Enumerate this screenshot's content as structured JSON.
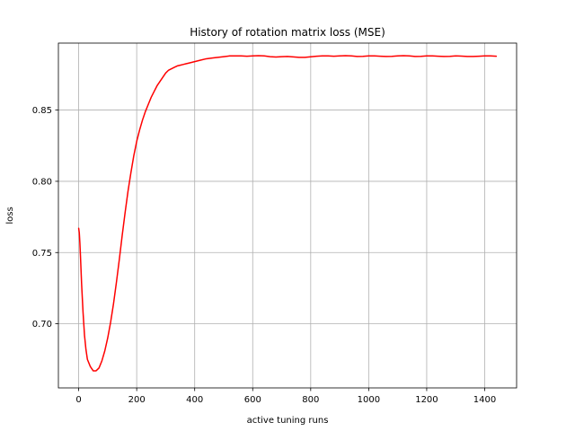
{
  "chart_data": {
    "type": "line",
    "title": "History of rotation matrix loss (MSE)",
    "xlabel": "active tuning runs",
    "ylabel": "loss",
    "xlim": [
      -70,
      1510
    ],
    "ylim": [
      0.655,
      0.897
    ],
    "xticks": [
      0,
      200,
      400,
      600,
      800,
      1000,
      1200,
      1400
    ],
    "yticks": [
      0.7,
      0.75,
      0.8,
      0.85
    ],
    "xtick_labels": [
      "0",
      "200",
      "400",
      "600",
      "800",
      "1000",
      "1200",
      "1400"
    ],
    "ytick_labels": [
      "0.70",
      "0.75",
      "0.80",
      "0.85"
    ],
    "grid": true,
    "series": [
      {
        "color": "#ff0000",
        "x": [
          0,
          2,
          4,
          6,
          8,
          10,
          15,
          20,
          25,
          30,
          40,
          50,
          60,
          70,
          80,
          90,
          100,
          110,
          120,
          130,
          140,
          150,
          160,
          170,
          180,
          190,
          200,
          210,
          220,
          230,
          240,
          250,
          260,
          270,
          280,
          290,
          300,
          310,
          320,
          330,
          340,
          350,
          360,
          370,
          380,
          400,
          420,
          440,
          460,
          480,
          500,
          520,
          540,
          560,
          580,
          600,
          620,
          640,
          660,
          680,
          700,
          720,
          740,
          760,
          780,
          800,
          820,
          840,
          860,
          880,
          900,
          920,
          940,
          960,
          980,
          1000,
          1020,
          1040,
          1060,
          1080,
          1100,
          1120,
          1140,
          1160,
          1180,
          1200,
          1220,
          1240,
          1260,
          1280,
          1300,
          1320,
          1340,
          1360,
          1380,
          1400,
          1420,
          1440
        ],
        "y": [
          0.767,
          0.764,
          0.757,
          0.748,
          0.738,
          0.728,
          0.708,
          0.692,
          0.682,
          0.675,
          0.67,
          0.667,
          0.667,
          0.669,
          0.674,
          0.681,
          0.69,
          0.701,
          0.714,
          0.729,
          0.745,
          0.762,
          0.778,
          0.793,
          0.806,
          0.818,
          0.828,
          0.836,
          0.843,
          0.849,
          0.854,
          0.859,
          0.863,
          0.867,
          0.87,
          0.873,
          0.876,
          0.878,
          0.879,
          0.88,
          0.881,
          0.8815,
          0.882,
          0.8825,
          0.883,
          0.884,
          0.885,
          0.886,
          0.8865,
          0.887,
          0.8875,
          0.888,
          0.888,
          0.888,
          0.8878,
          0.888,
          0.8882,
          0.888,
          0.8875,
          0.8872,
          0.8875,
          0.8876,
          0.8873,
          0.887,
          0.887,
          0.8874,
          0.8878,
          0.888,
          0.888,
          0.8878,
          0.888,
          0.8882,
          0.888,
          0.8876,
          0.8877,
          0.888,
          0.888,
          0.8878,
          0.8876,
          0.8877,
          0.888,
          0.8882,
          0.888,
          0.8876,
          0.8877,
          0.888,
          0.888,
          0.8878,
          0.8876,
          0.8877,
          0.888,
          0.8879,
          0.8876,
          0.8876,
          0.8878,
          0.888,
          0.888,
          0.8878
        ]
      }
    ]
  }
}
